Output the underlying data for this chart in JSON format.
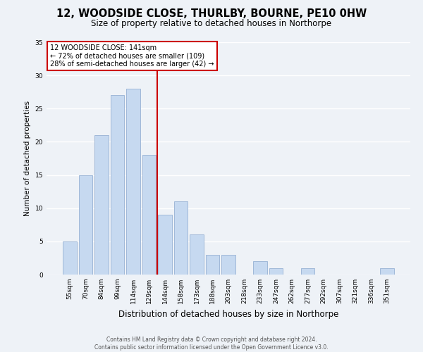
{
  "title": "12, WOODSIDE CLOSE, THURLBY, BOURNE, PE10 0HW",
  "subtitle": "Size of property relative to detached houses in Northorpe",
  "xlabel": "Distribution of detached houses by size in Northorpe",
  "ylabel": "Number of detached properties",
  "bar_labels": [
    "55sqm",
    "70sqm",
    "84sqm",
    "99sqm",
    "114sqm",
    "129sqm",
    "144sqm",
    "158sqm",
    "173sqm",
    "188sqm",
    "203sqm",
    "218sqm",
    "233sqm",
    "247sqm",
    "262sqm",
    "277sqm",
    "292sqm",
    "307sqm",
    "321sqm",
    "336sqm",
    "351sqm"
  ],
  "bar_values": [
    5,
    15,
    21,
    27,
    28,
    18,
    9,
    11,
    6,
    3,
    3,
    0,
    2,
    1,
    0,
    1,
    0,
    0,
    0,
    0,
    1
  ],
  "bar_color": "#c6d9f0",
  "bar_edge_color": "#a0b8d8",
  "vline_x": 5.5,
  "vline_color": "#cc0000",
  "annotation_title": "12 WOODSIDE CLOSE: 141sqm",
  "annotation_line1": "← 72% of detached houses are smaller (109)",
  "annotation_line2": "28% of semi-detached houses are larger (42) →",
  "annotation_box_color": "white",
  "annotation_box_edge": "#cc0000",
  "ylim": [
    0,
    35
  ],
  "yticks": [
    0,
    5,
    10,
    15,
    20,
    25,
    30,
    35
  ],
  "footer1": "Contains HM Land Registry data © Crown copyright and database right 2024.",
  "footer2": "Contains public sector information licensed under the Open Government Licence v3.0.",
  "background_color": "#eef2f7",
  "grid_color": "#ffffff",
  "title_fontsize": 10.5,
  "subtitle_fontsize": 8.5,
  "ylabel_fontsize": 7.5,
  "xlabel_fontsize": 8.5,
  "tick_fontsize": 6.5,
  "annotation_fontsize": 7.0,
  "footer_fontsize": 5.5
}
